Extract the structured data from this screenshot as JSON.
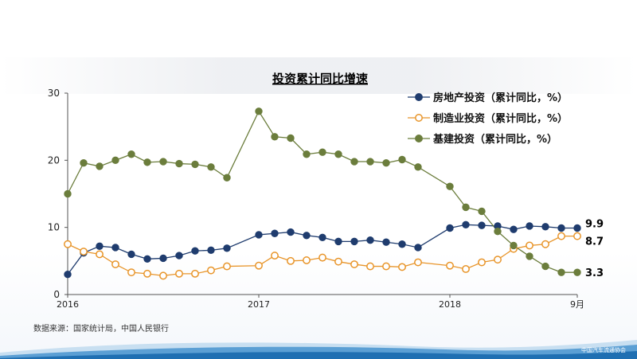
{
  "colors": {
    "real_estate": "#1f3c6e",
    "manufacturing": "#e8952a",
    "infrastructure": "#6b7d3c",
    "axis": "#555555",
    "text": "#000000"
  },
  "source_note": "数据来源：国家统计局，中国人民银行",
  "logo_text": "中国汽车流通协会",
  "chart_data": {
    "type": "line",
    "title": "投资累计同比增速",
    "xlabel": "",
    "ylabel": "",
    "ylim": [
      0,
      30
    ],
    "yticks": [
      "0",
      "10",
      "20",
      "30"
    ],
    "x_tick_labels": [
      {
        "label": "2016",
        "index": 0
      },
      {
        "label": "2017",
        "index": 12
      },
      {
        "label": "2018",
        "index": 24
      },
      {
        "label": "9月",
        "index": 32
      }
    ],
    "grid": false,
    "legend_position": "top-right",
    "x": [
      "2016-01",
      "2016-02",
      "2016-03",
      "2016-04",
      "2016-05",
      "2016-06",
      "2016-07",
      "2016-08",
      "2016-09",
      "2016-10",
      "2016-11",
      "2016-12",
      "2017-02",
      "2017-03",
      "2017-04",
      "2017-05",
      "2017-06",
      "2017-07",
      "2017-08",
      "2017-09",
      "2017-10",
      "2017-11",
      "2017-12",
      "2018-02",
      "2018-03",
      "2018-04",
      "2018-05",
      "2018-06",
      "2018-07",
      "2018-08",
      "2018-09"
    ],
    "x_index": [
      0,
      1,
      2,
      3,
      4,
      5,
      6,
      7,
      8,
      9,
      10,
      12,
      13,
      14,
      15,
      16,
      17,
      18,
      19,
      20,
      21,
      22,
      24,
      25,
      26,
      27,
      28,
      29,
      30,
      31,
      32
    ],
    "series": [
      {
        "name": "房地产投资（累计同比，%）",
        "key": "real_estate",
        "filled": true,
        "values": [
          3.0,
          6.2,
          7.2,
          7.0,
          6.0,
          5.3,
          5.4,
          5.8,
          6.5,
          6.6,
          6.9,
          8.9,
          9.1,
          9.3,
          8.8,
          8.5,
          7.9,
          7.9,
          8.1,
          7.8,
          7.5,
          7.0,
          9.9,
          10.4,
          10.3,
          10.2,
          9.7,
          10.2,
          10.1,
          9.9,
          9.9
        ]
      },
      {
        "name": "制造业投资（累计同比，%）",
        "key": "manufacturing",
        "filled": false,
        "values": [
          7.5,
          6.4,
          6.0,
          4.5,
          3.3,
          3.1,
          2.8,
          3.1,
          3.1,
          3.6,
          4.2,
          4.3,
          5.8,
          5.0,
          5.1,
          5.5,
          4.9,
          4.5,
          4.2,
          4.2,
          4.1,
          4.8,
          4.3,
          3.8,
          4.8,
          5.2,
          6.8,
          7.3,
          7.5,
          8.7,
          8.7
        ]
      },
      {
        "name": "基建投资（累计同比，%）",
        "key": "infrastructure",
        "filled": true,
        "values": [
          15.0,
          19.6,
          19.1,
          20.0,
          20.9,
          19.7,
          19.8,
          19.5,
          19.4,
          19.0,
          17.4,
          27.3,
          23.5,
          23.3,
          20.9,
          21.2,
          20.9,
          19.8,
          19.8,
          19.6,
          20.1,
          19.0,
          16.1,
          13.0,
          12.4,
          9.4,
          7.3,
          5.7,
          4.2,
          3.3,
          3.3
        ]
      }
    ],
    "end_labels": [
      {
        "series": "real_estate",
        "text": "9.9"
      },
      {
        "series": "manufacturing",
        "text": "8.7"
      },
      {
        "series": "infrastructure",
        "text": "3.3"
      }
    ]
  }
}
